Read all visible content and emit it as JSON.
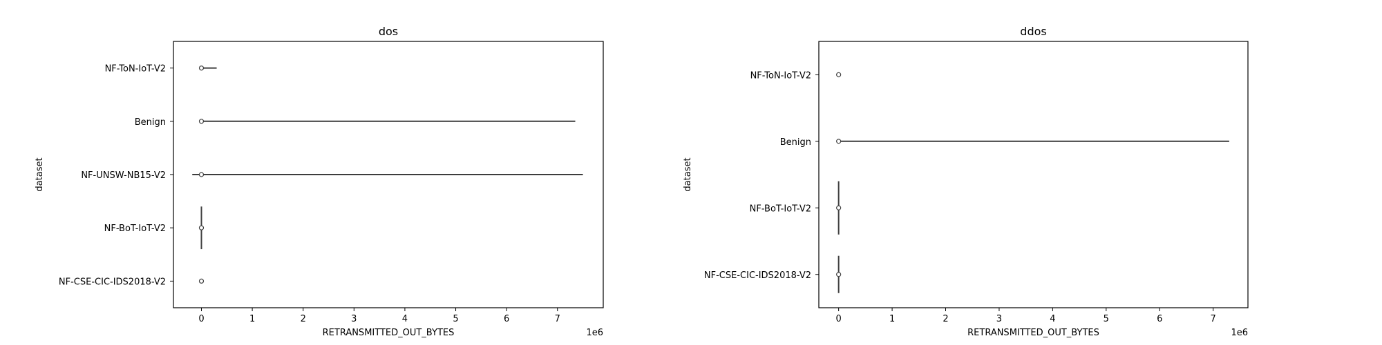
{
  "chart_data": [
    {
      "type": "violin",
      "title": "dos",
      "xlabel": "RETRANSMITTED_OUT_BYTES",
      "ylabel": "dataset",
      "x_scale_label": "1e6",
      "xlim": [
        -0.55,
        7.9
      ],
      "xticks": [
        0,
        1,
        2,
        3,
        4,
        5,
        6,
        7
      ],
      "categories": [
        "NF-ToN-IoT-V2",
        "Benign",
        "NF-UNSW-NB15-V2",
        "NF-BoT-IoT-V2",
        "NF-CSE-CIC-IDS2018-V2"
      ],
      "series": [
        {
          "category": "NF-ToN-IoT-V2",
          "min": 0,
          "max": 0.3,
          "median": 0
        },
        {
          "category": "Benign",
          "min": 0,
          "max": 7.35,
          "median": 0
        },
        {
          "category": "NF-UNSW-NB15-V2",
          "min": -0.18,
          "max": 7.5,
          "median": 0
        },
        {
          "category": "NF-BoT-IoT-V2",
          "min": 0,
          "max": 0,
          "median": 0
        },
        {
          "category": "NF-CSE-CIC-IDS2018-V2",
          "min": 0,
          "max": 0,
          "median": 0
        }
      ],
      "grid": false
    },
    {
      "type": "violin",
      "title": "ddos",
      "xlabel": "RETRANSMITTED_OUT_BYTES",
      "ylabel": "dataset",
      "x_scale_label": "1e6",
      "xlim": [
        -0.37,
        7.65
      ],
      "xticks": [
        0,
        1,
        2,
        3,
        4,
        5,
        6,
        7
      ],
      "categories": [
        "NF-ToN-IoT-V2",
        "Benign",
        "NF-BoT-IoT-V2",
        "NF-CSE-CIC-IDS2018-V2"
      ],
      "series": [
        {
          "category": "NF-ToN-IoT-V2",
          "min": 0,
          "max": 0.04,
          "median": 0
        },
        {
          "category": "Benign",
          "min": 0,
          "max": 7.3,
          "median": 0
        },
        {
          "category": "NF-BoT-IoT-V2",
          "min": 0,
          "max": 0,
          "median": 0
        },
        {
          "category": "NF-CSE-CIC-IDS2018-V2",
          "min": 0,
          "max": 0,
          "median": 0
        }
      ],
      "grid": false
    }
  ]
}
